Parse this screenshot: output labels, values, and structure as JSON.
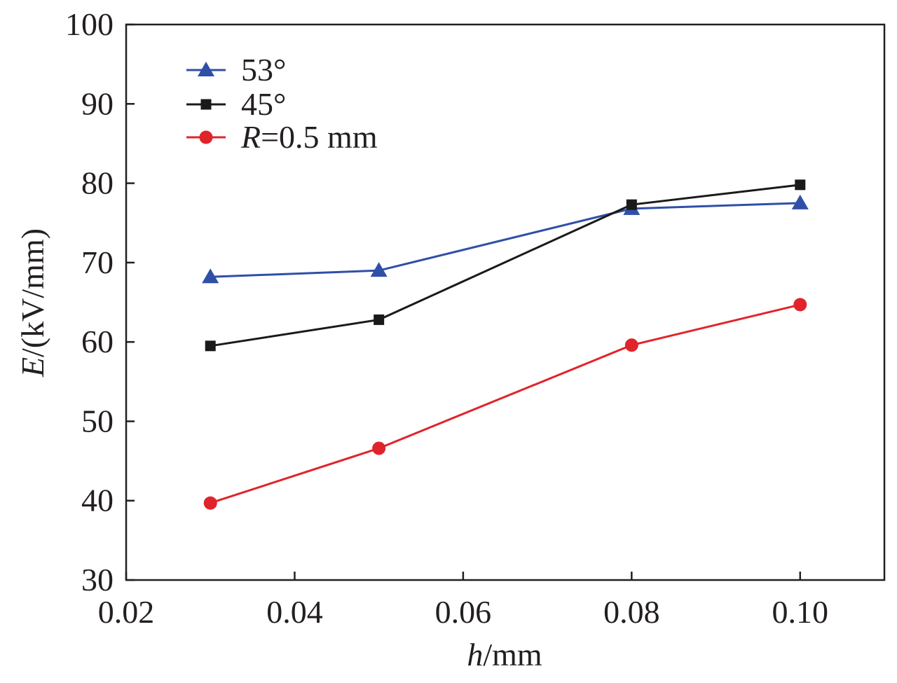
{
  "chart_data": {
    "type": "line",
    "xlabel": {
      "italic": "h",
      "rest": "/mm"
    },
    "ylabel": {
      "italic": "E",
      "rest": "/(kV/mm)"
    },
    "xlim": [
      0.02,
      0.11
    ],
    "ylim": [
      30,
      100
    ],
    "xticks": [
      "0.02",
      "0.04",
      "0.06",
      "0.08",
      "0.10"
    ],
    "xtick_values": [
      0.02,
      0.04,
      0.06,
      0.08,
      0.1
    ],
    "yticks": [
      "30",
      "40",
      "50",
      "60",
      "70",
      "80",
      "90",
      "100"
    ],
    "ytick_values": [
      30,
      40,
      50,
      60,
      70,
      80,
      90,
      100
    ],
    "grid": false,
    "legend_position": "top-left",
    "x": [
      0.03,
      0.05,
      0.08,
      0.1
    ],
    "series": [
      {
        "name": "53°",
        "legend_italic": "",
        "legend_rest": "53°",
        "marker": "triangle",
        "color": "#2f4fa8",
        "values": [
          68.2,
          69.0,
          76.8,
          77.5
        ]
      },
      {
        "name": "45°",
        "legend_italic": "",
        "legend_rest": "45°",
        "marker": "square",
        "color": "#1a1a1a",
        "values": [
          59.5,
          62.8,
          77.3,
          79.8
        ]
      },
      {
        "name": "R=0.5 mm",
        "legend_italic": "R",
        "legend_rest": "=0.5 mm",
        "marker": "circle",
        "color": "#e0242b",
        "values": [
          39.7,
          46.6,
          59.6,
          64.7
        ]
      }
    ]
  }
}
